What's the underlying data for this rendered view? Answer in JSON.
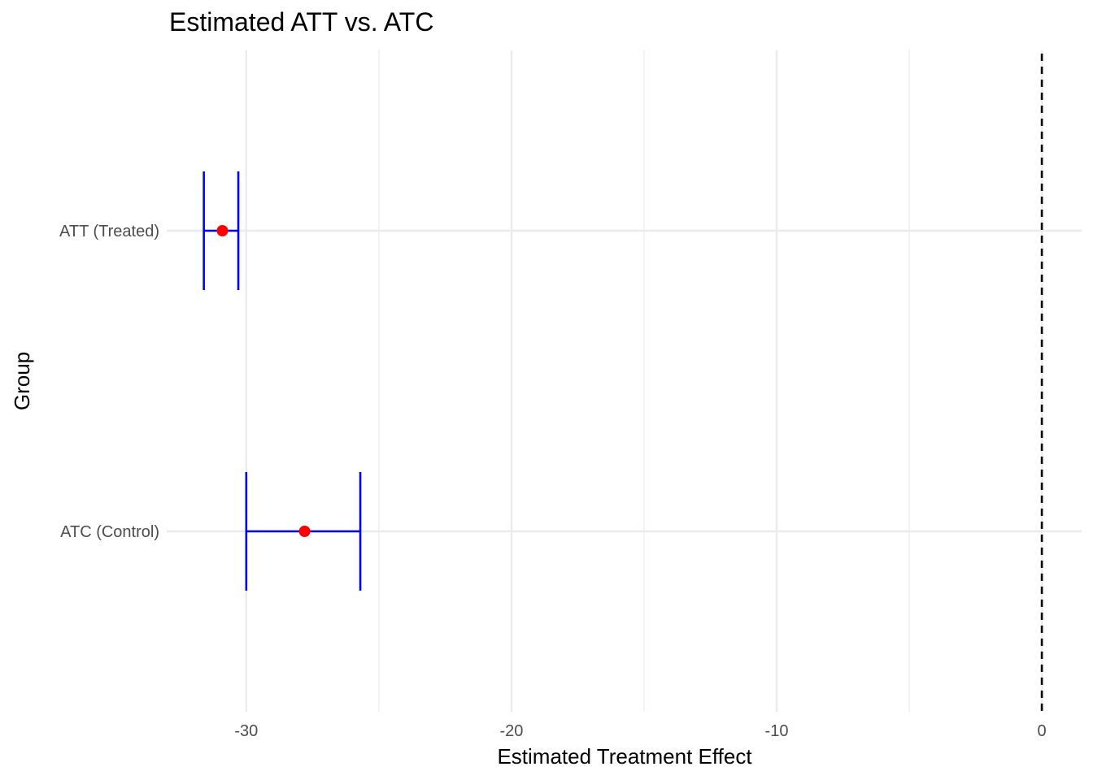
{
  "chart_data": {
    "type": "errorbar",
    "title": "Estimated ATT vs. ATC",
    "xlabel": "Estimated Treatment Effect",
    "ylabel": "Group",
    "categories": [
      "ATT (Treated)",
      "ATC (Control)"
    ],
    "estimates": [
      -30.9,
      -27.8
    ],
    "lower": [
      -31.6,
      -30.0
    ],
    "upper": [
      -30.3,
      -25.7
    ],
    "xlim": [
      -33.0,
      1.5
    ],
    "x_ticks": [
      -30,
      -20,
      -10,
      0
    ],
    "x_tick_labels": [
      "-30",
      "-20",
      "-10",
      "0"
    ],
    "x_minor_ticks": [
      -25,
      -15,
      -5
    ],
    "reference_line": 0,
    "grid": true,
    "legend": "none",
    "colors": {
      "point": "#ff0000",
      "errorbar": "#0000ff",
      "grid": "#ebebeb",
      "reference": "#000000"
    }
  }
}
